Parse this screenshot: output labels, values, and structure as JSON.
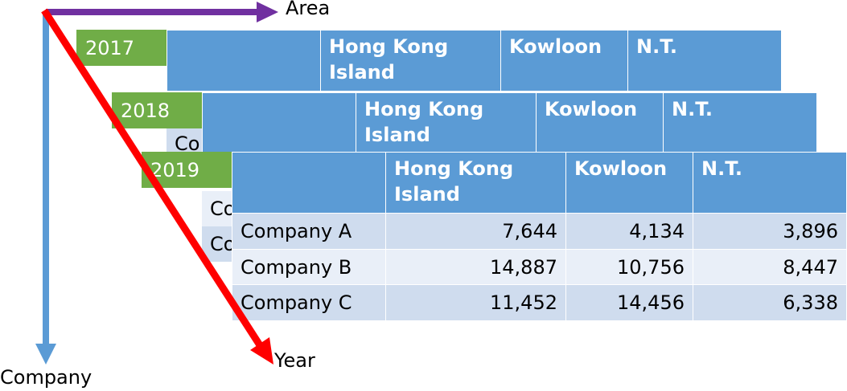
{
  "axes": {
    "area_label": "Area",
    "company_label": "Company",
    "year_label": "Year",
    "area_color": "#7030a0",
    "company_color": "#5b9bd5",
    "year_color": "#ff0000"
  },
  "layers": [
    {
      "year": "2017",
      "columns": [
        "",
        "Hong Kong Island",
        "Kowloon",
        "N.T."
      ],
      "rows": []
    },
    {
      "year": "2018",
      "columns": [
        "",
        "Hong Kong Island",
        "Kowloon",
        "N.T."
      ],
      "rows": [
        {
          "company": "Co"
        }
      ]
    },
    {
      "year": "2019",
      "columns": [
        "",
        "Hong Kong Island",
        "Kowloon",
        "N.T."
      ],
      "rows": [
        {
          "company": "Company A",
          "values": [
            "7,644",
            "4,134",
            "3,896"
          ]
        },
        {
          "company": "Company B",
          "values": [
            "14,887",
            "10,756",
            "8,447"
          ]
        },
        {
          "company": "Company C",
          "values": [
            "11,452",
            "14,456",
            "6,338"
          ]
        }
      ]
    }
  ],
  "peek_rows": [
    "Co",
    "Co"
  ]
}
